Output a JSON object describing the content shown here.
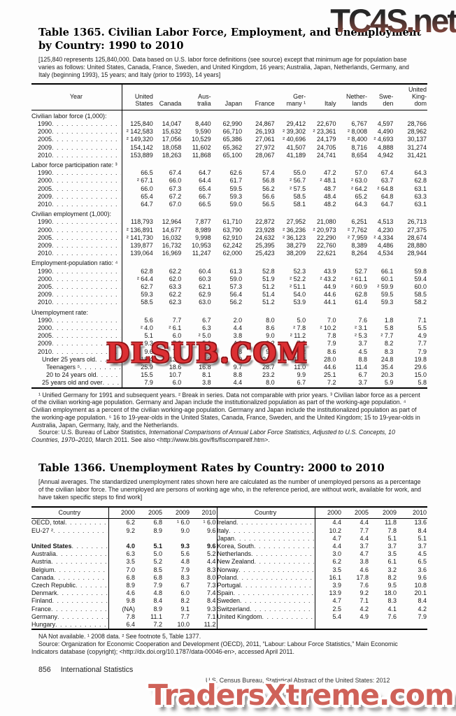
{
  "watermarks": {
    "top": "TC4S.net",
    "middle": "DLSUB.COM",
    "bottom": "TradersXtreme.com"
  },
  "footer": {
    "page_number": "856",
    "section": "International Statistics",
    "credit": "U.S. Census Bureau, Statistical Abstract of the United States: 2012"
  },
  "table1365": {
    "title": "Table 1365. Civilian Labor Force, Employment, and Unemployment\nby Country: 1990 to 2010",
    "note": "[125,840 represents 125,840,000. Data based on U.S. labor force definitions (see source) except that minimum age for population base varies as follows: United States, Canada, France, Sweden, and United Kingdom, 16 years; Australia, Japan, Netherlands, Germany, and Italy (beginning 1993), 15 years; and Italy (prior to 1993), 14 years]",
    "columns": [
      "Year",
      "United\nStates",
      "Canada",
      "Aus-\ntralia",
      "Japan",
      "France",
      "Ger-\nmany ¹",
      "Italy",
      "Nether-\nlands",
      "Swe-\nden",
      "United\nKing-\ndom"
    ],
    "sections": [
      {
        "heading": "Civilian labor force (1,000):",
        "rows": [
          {
            "label": "1990",
            "indent": 1,
            "values": [
              "125,840",
              "14,047",
              "8,440",
              "62,990",
              "24,867",
              "29,412",
              "22,670",
              "6,767",
              "4,597",
              "28,766"
            ]
          },
          {
            "label": "2000",
            "indent": 1,
            "values": [
              "² 142,583",
              "15,632",
              "9,590",
              "66,710",
              "26,193",
              "² 39,302",
              "² 23,361",
              "² 8,008",
              "4,490",
              "28,962"
            ]
          },
          {
            "label": "2005",
            "indent": 1,
            "values": [
              "² 149,320",
              "17,056",
              "10,529",
              "65,386",
              "27,061",
              "² 40,696",
              "24,179",
              "² 8,400",
              "² 4,693",
              "30,137"
            ]
          },
          {
            "label": "2009",
            "indent": 1,
            "values": [
              "154,142",
              "18,058",
              "11,602",
              "65,362",
              "27,972",
              "41,507",
              "24,705",
              "8,716",
              "4,888",
              "31,274"
            ]
          },
          {
            "label": "2010",
            "indent": 1,
            "values": [
              "153,889",
              "18,263",
              "11,868",
              "65,100",
              "28,067",
              "41,189",
              "24,741",
              "8,654",
              "4,942",
              "31,421"
            ]
          }
        ]
      },
      {
        "heading": "Labor force participation rate: ³",
        "rows": [
          {
            "label": "1990",
            "indent": 1,
            "values": [
              "66.5",
              "67.4",
              "64.7",
              "62.6",
              "57.4",
              "55.0",
              "47.2",
              "57.0",
              "67.4",
              "64.3"
            ]
          },
          {
            "label": "2000",
            "indent": 1,
            "values": [
              "² 67.1",
              "66.0",
              "64.4",
              "61.7",
              "56.8",
              "² 56.7",
              "² 48.1",
              "² 63.0",
              "63.7",
              "62.8"
            ]
          },
          {
            "label": "2005",
            "indent": 1,
            "values": [
              "66.0",
              "67.3",
              "65.4",
              "59.5",
              "56.2",
              "² 57.5",
              "48.7",
              "² 64.2",
              "² 64.8",
              "63.1"
            ]
          },
          {
            "label": "2009",
            "indent": 1,
            "values": [
              "65.4",
              "67.2",
              "66.7",
              "59.3",
              "56.6",
              "58.5",
              "48.4",
              "65.2",
              "64.8",
              "63.3"
            ]
          },
          {
            "label": "2010",
            "indent": 1,
            "values": [
              "64.7",
              "67.0",
              "66.5",
              "59.0",
              "56.5",
              "58.1",
              "48.2",
              "64.3",
              "64.7",
              "63.1"
            ]
          }
        ]
      },
      {
        "heading": "Civilian employment (1,000):",
        "rows": [
          {
            "label": "1990",
            "indent": 1,
            "values": [
              "118,793",
              "12,964",
              "7,877",
              "61,710",
              "22,872",
              "27,952",
              "21,080",
              "6,251",
              "4,513",
              "26,713"
            ]
          },
          {
            "label": "2000",
            "indent": 1,
            "values": [
              "² 136,891",
              "14,677",
              "8,989",
              "63,790",
              "23,928",
              "² 36,236",
              "² 20,973",
              "² 7,762",
              "4,230",
              "27,375"
            ]
          },
          {
            "label": "2005",
            "indent": 1,
            "values": [
              "² 141,730",
              "16,032",
              "9,998",
              "62,910",
              "24,632",
              "² 36,123",
              "22,290",
              "² 7,959",
              "² 4,334",
              "28,674"
            ]
          },
          {
            "label": "2009",
            "indent": 1,
            "values": [
              "139,877",
              "16,732",
              "10,953",
              "62,242",
              "25,395",
              "38,279",
              "22,760",
              "8,389",
              "4,486",
              "28,880"
            ]
          },
          {
            "label": "2010",
            "indent": 1,
            "values": [
              "139,064",
              "16,969",
              "11,247",
              "62,000",
              "25,423",
              "38,209",
              "22,621",
              "8,264",
              "4,534",
              "28,944"
            ]
          }
        ]
      },
      {
        "heading": "Employment-population ratio: ⁴",
        "rows": [
          {
            "label": "1990",
            "indent": 1,
            "values": [
              "62.8",
              "62.2",
              "60.4",
              "61.3",
              "52.8",
              "52.3",
              "43.9",
              "52.7",
              "66.1",
              "59.8"
            ]
          },
          {
            "label": "2000",
            "indent": 1,
            "values": [
              "² 64.4",
              "62.0",
              "60.3",
              "59.0",
              "51.9",
              "² 52.2",
              "² 43.2",
              "² 61.1",
              "60.1",
              "59.4"
            ]
          },
          {
            "label": "2005",
            "indent": 1,
            "values": [
              "62.7",
              "63.3",
              "62.1",
              "57.3",
              "51.2",
              "² 51.1",
              "44.9",
              "² 60.9",
              "² 59.9",
              "60.0"
            ]
          },
          {
            "label": "2009",
            "indent": 1,
            "values": [
              "59.3",
              "62.2",
              "62.9",
              "56.4",
              "51.4",
              "54.0",
              "44.6",
              "62.8",
              "59.5",
              "58.5"
            ]
          },
          {
            "label": "2010",
            "indent": 1,
            "values": [
              "58.5",
              "62.3",
              "63.0",
              "56.2",
              "51.2",
              "53.9",
              "44.1",
              "61.4",
              "59.3",
              "58.2"
            ]
          }
        ]
      },
      {
        "heading": "Unemployment rate:",
        "rows": [
          {
            "label": "1990",
            "indent": 1,
            "values": [
              "5.6",
              "7.7",
              "6.7",
              "2.0",
              "8.0",
              "5.0",
              "7.0",
              "7.6",
              "1.8",
              "7.1"
            ]
          },
          {
            "label": "2000",
            "indent": 1,
            "values": [
              "² 4.0",
              "² 6.1",
              "6.3",
              "4.4",
              "8.6",
              "² 7.8",
              "² 10.2",
              "² 3.1",
              "5.8",
              "5.5"
            ]
          },
          {
            "label": "2005",
            "indent": 1,
            "values": [
              "5.1",
              "6.0",
              "² 5.0",
              "3.8",
              "9.0",
              "² 11.2",
              "7.8",
              "² 5.3",
              "² 7.7",
              "4.9"
            ]
          },
          {
            "label": "2009",
            "indent": 1,
            "values": [
              "9.3",
              "7.3",
              "5.6",
              "4.8",
              "9.2",
              "7.8",
              "7.9",
              "3.7",
              "8.2",
              "7.7"
            ]
          },
          {
            "label": "2010",
            "indent": 1,
            "values": [
              "9.6",
              "7.1",
              "5.2",
              "4.8",
              "9.4",
              "7.2",
              "8.6",
              "4.5",
              "8.3",
              "7.9"
            ]
          },
          {
            "label": "Under 25 years old",
            "indent": 2,
            "values": [
              "18.4",
              "13.6",
              "11.5",
              "9.0",
              "24.1",
              "10.2",
              "28.0",
              "8.8",
              "24.8",
              "19.8"
            ]
          },
          {
            "label": "Teenagers ⁵",
            "indent": 3,
            "values": [
              "25.9",
              "18.6",
              "16.8",
              "9.7",
              "28.7",
              "11.0",
              "44.6",
              "11.4",
              "35.4",
              "29.6"
            ]
          },
          {
            "label": "20 to 24 years old",
            "indent": 3,
            "values": [
              "15.5",
              "10.7",
              "8.1",
              "8.8",
              "23.2",
              "9.9",
              "25.1",
              "6.7",
              "20.3",
              "15.0"
            ]
          },
          {
            "label": "25 years old and over",
            "indent": 2,
            "values": [
              "7.9",
              "6.0",
              "3.8",
              "4.4",
              "8.0",
              "6.7",
              "7.2",
              "3.7",
              "5.9",
              "5.8"
            ]
          }
        ]
      }
    ],
    "footnotes": "¹ Unified Germany for 1991 and subsequent years. ² Break in series. Data not comparable with prior years. ³ Civilian labor force as a percent of the civilian working-age population. Germany and Japan include the institutionalized population as part of the working-age population. ⁴ Civilian employment as a percent of the civilian working-age population. Germany and Japan include the institutionalized population as part of the working-age population. ⁵ 16 to 19-year-olds in the United States, Canada, France, Sweden, and the United Kingdom; 15 to 19-year-olds in Australia, Japan, Germany, Italy, and the Netherlands.",
    "source_prefix": "Source: U.S. Bureau of Labor Statistics, ",
    "source_italic": "International Comparisons of Annual Labor Force Statistics, Adjusted to U.S. Concepts, 10 Countries, 1970–2010,",
    "source_suffix": " March 2011. See also <http://www.bls.gov/fls/flscomparelf.htm>."
  },
  "table1366": {
    "title": "Table 1366. Unemployment Rates by Country: 2000 to 2010",
    "note": "[Annual averages. The standardized unemployment rates shown here are calculated as the number of unemployed persons as a percentage of the civilian labor force. The unemployed are persons of working age who, in the reference period, are without work, available for work, and have taken specific steps to find work]",
    "country_header": "Country",
    "year_headers": [
      "2000",
      "2005",
      "2009",
      "2010"
    ],
    "rows": [
      {
        "left": {
          "label": "OECD, total",
          "values": [
            "6.2",
            "6.8",
            "¹ 6.0",
            "¹ 6.0"
          ]
        },
        "right": {
          "label": "Ireland",
          "values": [
            "4.4",
            "4.4",
            "11.8",
            "13.6"
          ]
        }
      },
      {
        "left": {
          "label": "EU-27 ²",
          "values": [
            "9.2",
            "8.9",
            "9.0",
            "9.6"
          ]
        },
        "right": {
          "label": "Italy",
          "values": [
            "10.2",
            "7.7",
            "7.8",
            "8.4"
          ]
        }
      },
      {
        "left": null,
        "right": {
          "label": "Japan",
          "values": [
            "4.7",
            "4.4",
            "5.1",
            "5.1"
          ]
        }
      },
      {
        "left": {
          "label": "United States",
          "bold": true,
          "values": [
            "4.0",
            "5.1",
            "9.3",
            "9.6"
          ]
        },
        "right": {
          "label": "Korea, South",
          "values": [
            "4.4",
            "3.7",
            "3.7",
            "3.7"
          ]
        }
      },
      {
        "left": {
          "label": "Australia",
          "values": [
            "6.3",
            "5.0",
            "5.6",
            "5.2"
          ]
        },
        "right": {
          "label": "Netherlands",
          "values": [
            "3.0",
            "4.7",
            "3.5",
            "4.5"
          ]
        }
      },
      {
        "left": {
          "label": "Austria",
          "values": [
            "3.5",
            "5.2",
            "4.8",
            "4.4"
          ]
        },
        "right": {
          "label": "New Zealand",
          "values": [
            "6.2",
            "3.8",
            "6.1",
            "6.5"
          ]
        }
      },
      {
        "left": {
          "label": "Belgium",
          "values": [
            "7.0",
            "8.5",
            "7.9",
            "8.3"
          ]
        },
        "right": {
          "label": "Norway",
          "values": [
            "3.5",
            "4.6",
            "3.2",
            "3.6"
          ]
        }
      },
      {
        "left": {
          "label": "Canada",
          "values": [
            "6.8",
            "6.8",
            "8.3",
            "8.0"
          ]
        },
        "right": {
          "label": "Poland",
          "values": [
            "16.1",
            "17.8",
            "8.2",
            "9.6"
          ]
        }
      },
      {
        "left": {
          "label": "Czech Republic",
          "values": [
            "8.9",
            "7.9",
            "6.7",
            "7.3"
          ]
        },
        "right": {
          "label": "Portugal",
          "values": [
            "3.9",
            "7.6",
            "9.5",
            "10.8"
          ]
        }
      },
      {
        "left": {
          "label": "Denmark",
          "values": [
            "4.6",
            "4.8",
            "6.0",
            "7.4"
          ]
        },
        "right": {
          "label": "Spain",
          "values": [
            "13.9",
            "9.2",
            "18.0",
            "20.1"
          ]
        }
      },
      {
        "left": {
          "label": "Finland",
          "values": [
            "9.8",
            "8.4",
            "8.2",
            "8.4"
          ]
        },
        "right": {
          "label": "Sweden",
          "values": [
            "4.7",
            "7.1",
            "8.3",
            "8.4"
          ]
        }
      },
      {
        "left": {
          "label": "France",
          "values": [
            "(NA)",
            "8.9",
            "9.1",
            "9.3"
          ]
        },
        "right": {
          "label": "Switzerland",
          "values": [
            "2.5",
            "4.2",
            "4.1",
            "4.2"
          ]
        }
      },
      {
        "left": {
          "label": "Germany",
          "values": [
            "7.8",
            "11.1",
            "7.7",
            "7.1"
          ]
        },
        "right": {
          "label": "United Kingdom",
          "values": [
            "5.4",
            "4.9",
            "7.6",
            "7.9"
          ]
        }
      },
      {
        "left": {
          "label": "Hungary",
          "values": [
            "6.4",
            "7.2",
            "10.0",
            "11.2"
          ]
        },
        "right": null
      }
    ],
    "footnotes": "NA Not available. ¹ 2008 data. ² See footnote 5, Table 1377.",
    "source": "Source: Organization for Economic Cooperation and Development (OECD), 2011, “Labour: Labour Force Statistics,” Main Economic Indicators database (copyright); <http://dx.doi.org/10.1787/data-00046-en>, accessed April 2011."
  }
}
